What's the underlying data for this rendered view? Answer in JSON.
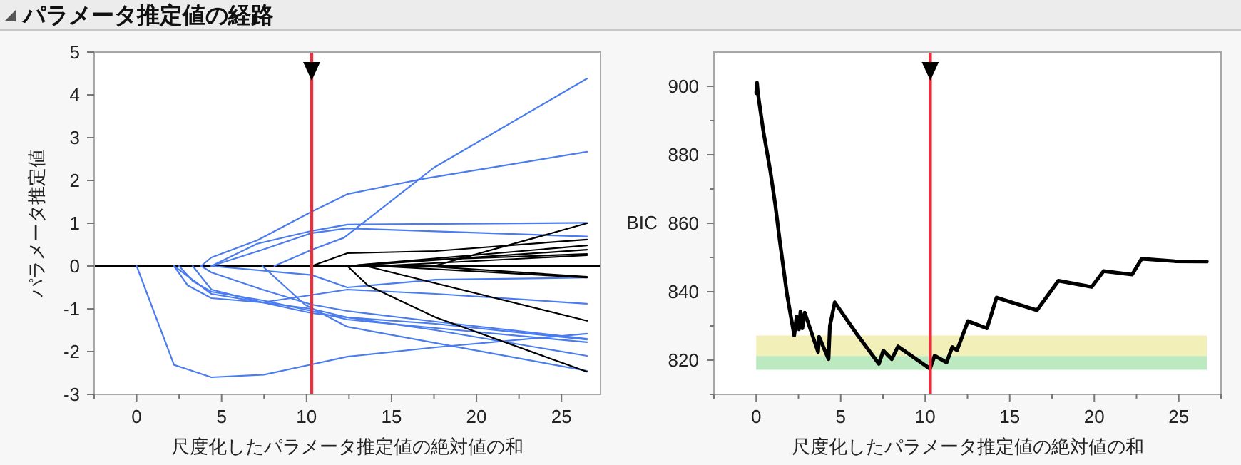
{
  "chart_data": [
    {
      "type": "line",
      "title": "パラメータ推定値の経路",
      "xlabel": "尺度化したパラメータ推定値の絶対値の和",
      "ylabel": "パラメータ推定値",
      "xlim": [
        -2.5,
        27.3
      ],
      "ylim": [
        -3,
        5
      ],
      "xticks": [
        {
          "value": -2.5,
          "label": null
        },
        0,
        {
          "value": 2.5,
          "label": null
        },
        5,
        {
          "value": 7.5,
          "label": null
        },
        10,
        {
          "value": 12.5,
          "label": null
        },
        15,
        {
          "value": 17.5,
          "label": null
        },
        20,
        {
          "value": 22.5,
          "label": null
        },
        25
      ],
      "yticks": [
        -3,
        -2,
        -1,
        0,
        1,
        2,
        3,
        4,
        5
      ],
      "marker": "none",
      "line_style": "solid",
      "ref_lines": [
        {
          "axis": "y",
          "value": 0,
          "color": "#000000"
        },
        {
          "axis": "x",
          "value": 10.3,
          "color": "#e8303e"
        }
      ],
      "series": [
        {
          "color": "#4a7cf0",
          "x": [
            0,
            2.2,
            4.4,
            7.5,
            10.3,
            12.4,
            17.6,
            26.5
          ],
          "values": [
            0,
            -2.31,
            -2.6,
            -2.54,
            -2.3,
            -2.12,
            -1.9,
            -1.58
          ]
        },
        {
          "color": "#4a7cf0",
          "x": [
            8.1,
            10.3,
            12.2,
            17.5,
            26.5
          ],
          "values": [
            0,
            0.38,
            0.66,
            2.3,
            4.38
          ]
        },
        {
          "color": "#4a7cf0",
          "x": [
            3.8,
            4.4,
            7.1,
            10.3,
            12.4,
            16.9,
            26.5
          ],
          "values": [
            0,
            0.2,
            0.6,
            1.27,
            1.68,
            2.04,
            2.67
          ]
        },
        {
          "color": "#4a7cf0",
          "x": [
            4.4,
            7.1,
            10.3,
            12.4,
            26.5
          ],
          "values": [
            0,
            0.52,
            0.82,
            0.97,
            1.01
          ]
        },
        {
          "color": "#4a7cf0",
          "x": [
            4.4,
            7.4,
            10.3,
            12.4,
            26.5
          ],
          "values": [
            0,
            0.38,
            0.77,
            0.88,
            0.69
          ]
        },
        {
          "color": "#4a7cf0",
          "x": [
            7.4,
            9.9,
            12.4,
            26.5
          ],
          "values": [
            0,
            -0.9,
            -1.42,
            -2.45
          ]
        },
        {
          "color": "#4a7cf0",
          "x": [
            4.4,
            10.3,
            12.4,
            17.6,
            26.5
          ],
          "values": [
            0,
            -0.21,
            -0.5,
            -0.32,
            -0.27
          ]
        },
        {
          "color": "#4a7cf0",
          "x": [
            3.3,
            4.4,
            7.4,
            12.4,
            17.6,
            26.5
          ],
          "values": [
            0,
            -0.55,
            -0.85,
            -0.55,
            -0.65,
            -0.88
          ]
        },
        {
          "color": "#4a7cf0",
          "x": [
            2.2,
            3.0,
            4.4,
            7.4,
            10.3,
            12.4,
            17.6,
            26.5
          ],
          "values": [
            0,
            -0.45,
            -0.75,
            -0.85,
            -1.0,
            -1.2,
            -1.35,
            -1.72
          ]
        },
        {
          "color": "#4a7cf0",
          "x": [
            2.5,
            3.3,
            4.4,
            7.4,
            10.3,
            12.4,
            17.6,
            26.5
          ],
          "values": [
            0,
            -0.35,
            -0.6,
            -0.8,
            -1.05,
            -1.25,
            -1.45,
            -1.78
          ]
        },
        {
          "color": "#4a7cf0",
          "x": [
            3.8,
            4.4,
            7.4,
            10.3,
            12.4,
            17.6,
            26.5
          ],
          "values": [
            0,
            -0.15,
            -0.55,
            -0.9,
            -1.05,
            -1.3,
            -1.7
          ]
        },
        {
          "color": "#4a7cf0",
          "x": [
            2.2,
            4.4,
            7.4,
            10.3,
            12.4,
            17.6,
            26.5
          ],
          "values": [
            0,
            -0.65,
            -0.85,
            -1.1,
            -1.2,
            -1.5,
            -2.1
          ]
        },
        {
          "color": "#000000",
          "x": [
            10.3,
            12.4,
            17.6,
            26.5
          ],
          "values": [
            0,
            0.3,
            0.35,
            0.62
          ]
        },
        {
          "color": "#000000",
          "x": [
            17.5,
            26.5
          ],
          "values": [
            0,
            1.0
          ]
        },
        {
          "color": "#000000",
          "x": [
            12.4,
            26.5
          ],
          "values": [
            0,
            0.48
          ]
        },
        {
          "color": "#000000",
          "x": [
            12.4,
            26.5
          ],
          "values": [
            0,
            0.38
          ]
        },
        {
          "color": "#000000",
          "x": [
            14.2,
            26.5
          ],
          "values": [
            0,
            0.25
          ]
        },
        {
          "color": "#000000",
          "x": [
            12.4,
            17.6,
            26.5
          ],
          "values": [
            0,
            0.15,
            0.28
          ]
        },
        {
          "color": "#000000",
          "x": [
            12.4,
            17.6,
            26.5
          ],
          "values": [
            0,
            -0.02,
            -0.25
          ]
        },
        {
          "color": "#000000",
          "x": [
            14.2,
            26.5
          ],
          "values": [
            0,
            -0.27
          ]
        },
        {
          "color": "#000000",
          "x": [
            12.4,
            13.6,
            17.6,
            26.5
          ],
          "values": [
            0,
            -0.45,
            -1.2,
            -2.47
          ]
        },
        {
          "color": "#000000",
          "x": [
            13.5,
            26.5
          ],
          "values": [
            0,
            -1.28
          ]
        }
      ]
    },
    {
      "type": "line",
      "xlabel": "尺度化したパラメータ推定値の絶対値の和",
      "ylabel": "BIC",
      "xlim": [
        -2.5,
        27.5
      ],
      "ylim": [
        810,
        910
      ],
      "xticks": [
        {
          "value": -2.5,
          "label": null
        },
        0,
        {
          "value": 2.5,
          "label": null
        },
        5,
        {
          "value": 7.5,
          "label": null
        },
        10,
        {
          "value": 12.5,
          "label": null
        },
        15,
        {
          "value": 17.5,
          "label": null
        },
        20,
        {
          "value": 22.5,
          "label": null
        },
        25,
        {
          "value": 27.5,
          "label": null
        }
      ],
      "yticks": [
        {
          "value": 810,
          "label": null
        },
        820,
        {
          "value": 830,
          "label": null
        },
        840,
        {
          "value": 850,
          "label": null
        },
        860,
        {
          "value": 870,
          "label": null
        },
        880,
        {
          "value": 890,
          "label": null
        },
        900
      ],
      "marker": "none",
      "line_style": "solid",
      "ref_lines": [
        {
          "axis": "x",
          "value": 10.3,
          "color": "#e8303e"
        }
      ],
      "bands": [
        {
          "axis": "y",
          "from": 821.2,
          "to": 827.2,
          "color": "#f3efb8"
        },
        {
          "axis": "y",
          "from": 817.2,
          "to": 821.2,
          "color": "#bde9c1"
        }
      ],
      "series": [
        {
          "color": "#000000",
          "x": [
            0,
            0.05,
            0.1,
            0.42,
            0.84,
            1.13,
            1.41,
            1.83,
            2.25,
            2.39,
            2.53,
            2.62,
            2.73,
            2.87,
            3.66,
            3.72,
            4.28,
            4.36,
            4.65,
            5.91,
            7.26,
            7.52,
            8.02,
            8.39,
            10.28,
            10.56,
            11.26,
            11.6,
            11.88,
            12.53,
            13.65,
            14.22,
            16.61,
            17.88,
            19.85,
            20.55,
            22.24,
            22.8,
            24.77,
            26.66
          ],
          "values": [
            898,
            901,
            898,
            887,
            875.1,
            865.4,
            854.3,
            839,
            827.2,
            832.8,
            829,
            834.2,
            829.3,
            833.9,
            822.4,
            826.8,
            820.3,
            830,
            836.9,
            827.9,
            818.9,
            822.8,
            820.3,
            824,
            817.5,
            821.3,
            819.3,
            823.8,
            822.9,
            831.4,
            829.3,
            838.3,
            834.6,
            843.2,
            841.4,
            846,
            845,
            849.6,
            848.9,
            848.8
          ]
        }
      ]
    }
  ]
}
